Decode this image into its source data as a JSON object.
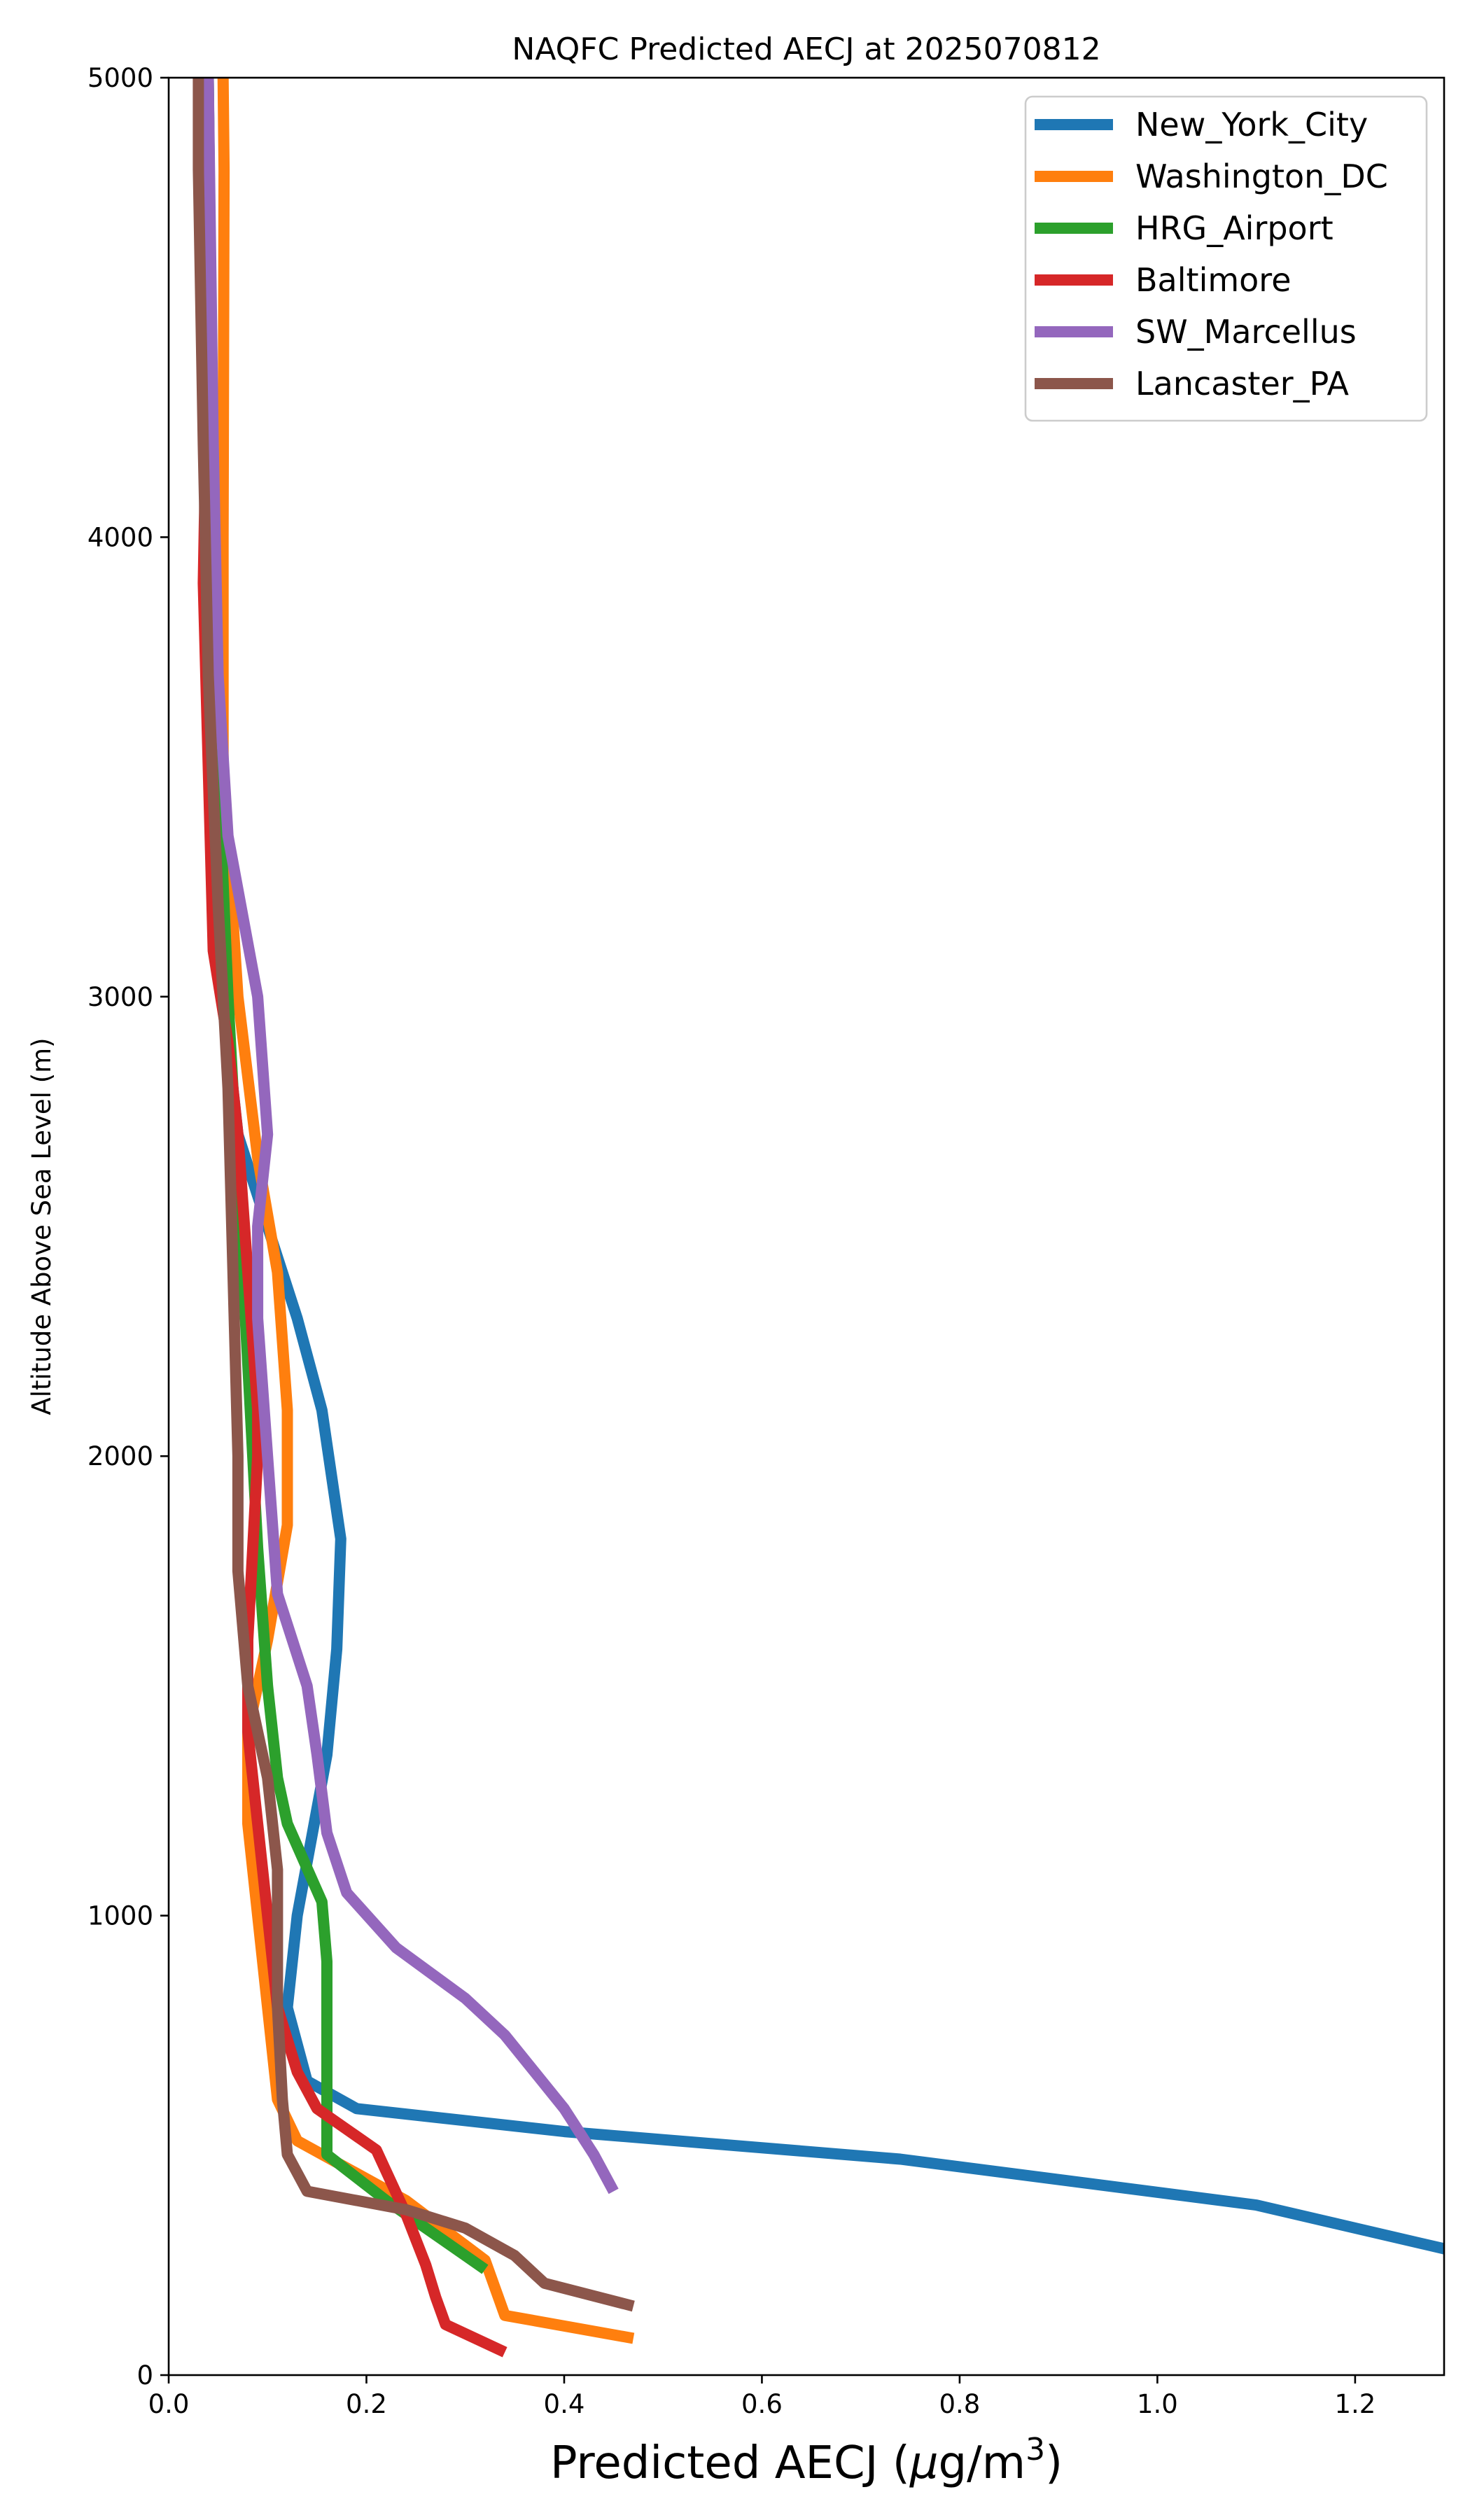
{
  "chart_data": {
    "type": "line",
    "title": "NAQFC Predicted AECJ at 2025070812",
    "xlabel": "Predicted AECJ (μg/m³)",
    "ylabel": "Altitude Above Sea Level (m)",
    "xlim": [
      0,
      1.29
    ],
    "ylim": [
      0,
      5000
    ],
    "xticks": [
      "0.0",
      "0.2",
      "0.4",
      "0.6",
      "0.8",
      "1.0",
      "1.2"
    ],
    "xtick_values": [
      0,
      0.2,
      0.4,
      0.6,
      0.8,
      1.0,
      1.2
    ],
    "yticks": [
      "0",
      "1000",
      "2000",
      "3000",
      "4000",
      "5000"
    ],
    "ytick_values": [
      0,
      1000,
      2000,
      3000,
      4000,
      5000
    ],
    "grid": false,
    "legend_position": "top-right",
    "series": [
      {
        "name": "New_York_City",
        "color": "#1f77b4",
        "points": [
          [
            1.3,
            270
          ],
          [
            1.1,
            370
          ],
          [
            0.74,
            470
          ],
          [
            0.4,
            530
          ],
          [
            0.19,
            580
          ],
          [
            0.14,
            640
          ],
          [
            0.12,
            800
          ],
          [
            0.13,
            1000
          ],
          [
            0.16,
            1350
          ],
          [
            0.17,
            1580
          ],
          [
            0.174,
            1820
          ],
          [
            0.155,
            2100
          ],
          [
            0.13,
            2300
          ],
          [
            0.1,
            2500
          ],
          [
            0.07,
            2700
          ],
          [
            0.05,
            3100
          ],
          [
            0.045,
            4000
          ],
          [
            0.04,
            5000
          ]
        ]
      },
      {
        "name": "Washington_DC",
        "color": "#ff7f0e",
        "points": [
          [
            0.47,
            80
          ],
          [
            0.34,
            130
          ],
          [
            0.33,
            190
          ],
          [
            0.32,
            250
          ],
          [
            0.24,
            380
          ],
          [
            0.13,
            510
          ],
          [
            0.11,
            600
          ],
          [
            0.09,
            1000
          ],
          [
            0.08,
            1200
          ],
          [
            0.08,
            1400
          ],
          [
            0.1,
            1600
          ],
          [
            0.12,
            1850
          ],
          [
            0.12,
            2100
          ],
          [
            0.11,
            2400
          ],
          [
            0.09,
            2650
          ],
          [
            0.07,
            3000
          ],
          [
            0.055,
            3500
          ],
          [
            0.055,
            4000
          ],
          [
            0.056,
            4800
          ],
          [
            0.055,
            5000
          ]
        ]
      },
      {
        "name": "HRG_Airport",
        "color": "#2ca02c",
        "points": [
          [
            0.32,
            230
          ],
          [
            0.28,
            290
          ],
          [
            0.22,
            380
          ],
          [
            0.16,
            480
          ],
          [
            0.16,
            900
          ],
          [
            0.155,
            1030
          ],
          [
            0.12,
            1200
          ],
          [
            0.11,
            1300
          ],
          [
            0.1,
            1500
          ],
          [
            0.09,
            1800
          ],
          [
            0.08,
            2200
          ],
          [
            0.07,
            2600
          ],
          [
            0.06,
            3000
          ],
          [
            0.05,
            3500
          ],
          [
            0.045,
            4000
          ],
          [
            0.04,
            5000
          ]
        ]
      },
      {
        "name": "Baltimore",
        "color": "#d62728",
        "points": [
          [
            0.34,
            50
          ],
          [
            0.28,
            110
          ],
          [
            0.27,
            170
          ],
          [
            0.26,
            240
          ],
          [
            0.24,
            350
          ],
          [
            0.21,
            490
          ],
          [
            0.15,
            580
          ],
          [
            0.13,
            660
          ],
          [
            0.11,
            800
          ],
          [
            0.1,
            1000
          ],
          [
            0.09,
            1200
          ],
          [
            0.08,
            1400
          ],
          [
            0.08,
            1600
          ],
          [
            0.09,
            2000
          ],
          [
            0.09,
            2100
          ],
          [
            0.08,
            2400
          ],
          [
            0.07,
            2700
          ],
          [
            0.06,
            2900
          ],
          [
            0.045,
            3100
          ],
          [
            0.04,
            3500
          ],
          [
            0.035,
            3900
          ],
          [
            0.04,
            4500
          ],
          [
            0.04,
            5000
          ]
        ]
      },
      {
        "name": "SW_Marcellus",
        "color": "#9467bd",
        "points": [
          [
            0.45,
            400
          ],
          [
            0.43,
            480
          ],
          [
            0.4,
            580
          ],
          [
            0.34,
            740
          ],
          [
            0.3,
            820
          ],
          [
            0.23,
            930
          ],
          [
            0.18,
            1050
          ],
          [
            0.16,
            1180
          ],
          [
            0.15,
            1350
          ],
          [
            0.14,
            1500
          ],
          [
            0.11,
            1700
          ],
          [
            0.1,
            2000
          ],
          [
            0.09,
            2300
          ],
          [
            0.09,
            2500
          ],
          [
            0.1,
            2700
          ],
          [
            0.09,
            3000
          ],
          [
            0.06,
            3350
          ],
          [
            0.05,
            3700
          ],
          [
            0.045,
            4200
          ],
          [
            0.04,
            5000
          ]
        ]
      },
      {
        "name": "Lancaster_PA",
        "color": "#8c564b",
        "points": [
          [
            0.47,
            150
          ],
          [
            0.38,
            200
          ],
          [
            0.35,
            260
          ],
          [
            0.3,
            320
          ],
          [
            0.24,
            360
          ],
          [
            0.14,
            400
          ],
          [
            0.12,
            480
          ],
          [
            0.115,
            600
          ],
          [
            0.11,
            800
          ],
          [
            0.11,
            1000
          ],
          [
            0.11,
            1100
          ],
          [
            0.1,
            1300
          ],
          [
            0.08,
            1500
          ],
          [
            0.07,
            1750
          ],
          [
            0.07,
            2000
          ],
          [
            0.065,
            2400
          ],
          [
            0.06,
            2800
          ],
          [
            0.05,
            3200
          ],
          [
            0.04,
            3700
          ],
          [
            0.035,
            4200
          ],
          [
            0.03,
            4800
          ],
          [
            0.03,
            5000
          ]
        ]
      }
    ]
  }
}
